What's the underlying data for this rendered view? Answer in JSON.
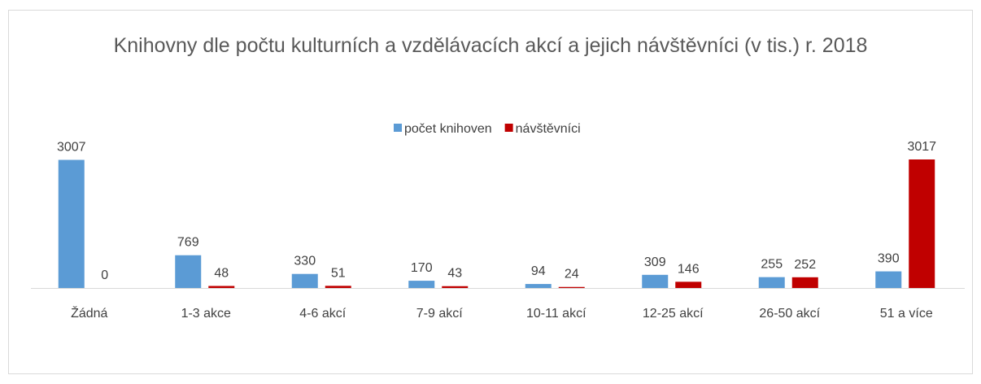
{
  "chart_data": {
    "type": "bar",
    "title": "Knihovny dle počtu kulturních a vzdělávacích akcí a jejich návštěvníci (v tis.) r. 2018",
    "categories": [
      "Žádná",
      "1-3 akce",
      "4-6 akcí",
      "7-9 akcí",
      "10-11 akcí",
      "12-25 akcí",
      "26-50 akcí",
      "51 a více"
    ],
    "series": [
      {
        "name": "počet knihoven",
        "color": "#5b9bd5",
        "values": [
          3007,
          769,
          330,
          170,
          94,
          309,
          255,
          390
        ]
      },
      {
        "name": "návštěvníci",
        "color": "#c00000",
        "values": [
          0,
          48,
          51,
          43,
          24,
          146,
          252,
          3017
        ]
      }
    ],
    "legend": "top"
  }
}
